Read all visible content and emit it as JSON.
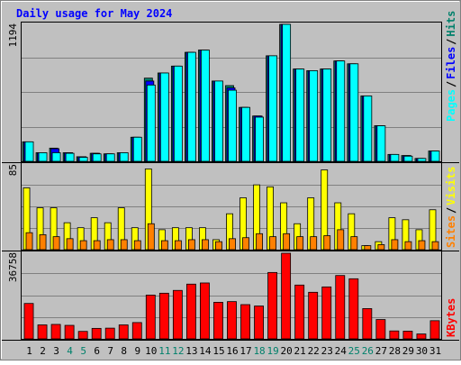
{
  "chart_data": [
    {
      "type": "bar",
      "title": "Daily usage for May 2024",
      "ymax_label": "1194",
      "ylim": [
        0,
        1194
      ],
      "categories": [
        "1",
        "2",
        "3",
        "4",
        "5",
        "6",
        "7",
        "8",
        "9",
        "10",
        "11",
        "12",
        "13",
        "14",
        "15",
        "16",
        "17",
        "18",
        "19",
        "20",
        "21",
        "22",
        "23",
        "24",
        "25",
        "26",
        "27",
        "28",
        "29",
        "30",
        "31"
      ],
      "weekend_days": [
        "4",
        "5",
        "11",
        "12",
        "18",
        "19",
        "25",
        "26"
      ],
      "series": [
        {
          "name": "Hits",
          "color": "#00806b",
          "values": [
            170,
            75,
            115,
            75,
            40,
            70,
            65,
            75,
            210,
            725,
            770,
            830,
            950,
            970,
            700,
            660,
            470,
            395,
            920,
            1194,
            805,
            790,
            805,
            875,
            850,
            570,
            310,
            60,
            50,
            25,
            90
          ]
        },
        {
          "name": "Files",
          "color": "#0000ff",
          "values": [
            170,
            75,
            110,
            75,
            40,
            70,
            65,
            75,
            210,
            700,
            770,
            830,
            950,
            970,
            700,
            640,
            470,
            395,
            920,
            1194,
            805,
            790,
            805,
            875,
            850,
            570,
            310,
            60,
            50,
            25,
            90
          ]
        },
        {
          "name": "Pages",
          "color": "#00ffff",
          "values": [
            170,
            75,
            75,
            70,
            35,
            65,
            65,
            75,
            210,
            665,
            770,
            830,
            950,
            970,
            700,
            620,
            470,
            385,
            920,
            1194,
            805,
            790,
            805,
            875,
            850,
            570,
            310,
            60,
            45,
            25,
            90
          ]
        }
      ],
      "legend": "right"
    },
    {
      "type": "bar",
      "ymax_label": "85",
      "ylim": [
        0,
        85
      ],
      "categories": [
        "1",
        "2",
        "3",
        "4",
        "5",
        "6",
        "7",
        "8",
        "9",
        "10",
        "11",
        "12",
        "13",
        "14",
        "15",
        "16",
        "17",
        "18",
        "19",
        "20",
        "21",
        "22",
        "23",
        "24",
        "25",
        "26",
        "27",
        "28",
        "29",
        "30",
        "31"
      ],
      "series": [
        {
          "name": "Visits",
          "color": "#ffff00",
          "values": [
            62,
            42,
            42,
            27,
            22,
            32,
            27,
            42,
            22,
            81,
            20,
            22,
            22,
            22,
            10,
            36,
            52,
            65,
            63,
            47,
            26,
            52,
            80,
            47,
            36,
            4,
            8,
            32,
            30,
            20,
            40
          ]
        },
        {
          "name": "Sites",
          "color": "#ff8000",
          "values": [
            17,
            15,
            13,
            11,
            9,
            9,
            10,
            10,
            9,
            26,
            9,
            9,
            10,
            10,
            8,
            11,
            12,
            16,
            13,
            16,
            13,
            13,
            14,
            20,
            13,
            4,
            5,
            10,
            8,
            9,
            8
          ]
        }
      ],
      "legend": "right"
    },
    {
      "type": "bar",
      "ymax_label": "36758",
      "ylim": [
        0,
        36758
      ],
      "categories": [
        "1",
        "2",
        "3",
        "4",
        "5",
        "6",
        "7",
        "8",
        "9",
        "10",
        "11",
        "12",
        "13",
        "14",
        "15",
        "16",
        "17",
        "18",
        "19",
        "20",
        "21",
        "22",
        "23",
        "24",
        "25",
        "26",
        "27",
        "28",
        "29",
        "30",
        "31"
      ],
      "series": [
        {
          "name": "KBytes",
          "color": "#ff0000",
          "values": [
            15200,
            6000,
            6200,
            5800,
            3200,
            4500,
            4600,
            6000,
            7000,
            18800,
            19600,
            20800,
            23500,
            24000,
            15700,
            16000,
            14700,
            14100,
            28500,
            36758,
            23100,
            20000,
            22300,
            27200,
            25800,
            13000,
            8300,
            3400,
            3300,
            2100,
            7800
          ]
        }
      ],
      "legend": "right"
    }
  ],
  "colors": {
    "background": "#c0c0c0",
    "outer_border": "#808080",
    "title_color": "#0000ff",
    "grid": "#808080",
    "weekday_label": "#000000",
    "weekend_label": "#00806b",
    "separator": "#000000"
  }
}
